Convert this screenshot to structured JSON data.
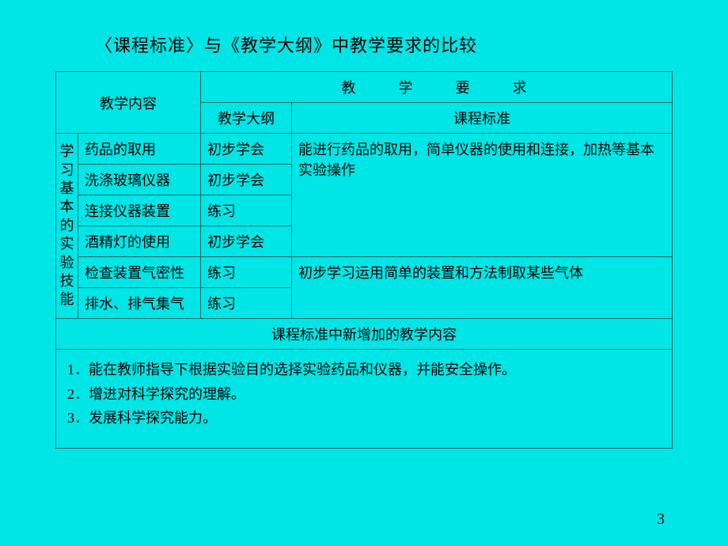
{
  "title": "〈课程标准〉与《教学大纲》中教学要求的比较",
  "table": {
    "header_content": "教学内容",
    "header_requirement": "教　学　要　求",
    "sub_syllabus": "教学大纲",
    "sub_standard": "课程标准",
    "vertical_label": "学习基本的实验技能",
    "rows": [
      {
        "content": "药品的取用",
        "syllabus": "初步学会"
      },
      {
        "content": "洗涤玻璃仪器",
        "syllabus": "初步学会"
      },
      {
        "content": "连接仪器装置",
        "syllabus": "练习"
      },
      {
        "content": "酒精灯的使用",
        "syllabus": "初步学会"
      },
      {
        "content": "检查装置气密性",
        "syllabus": "练习"
      },
      {
        "content": "排水、排气集气",
        "syllabus": "练习"
      }
    ],
    "standard_group1": "能进行药品的取用，简单仪器的使用和连接，加热等基本实验操作",
    "standard_group2": "初步学习运用简单的装置和方法制取某些气体",
    "new_content_header": "课程标准中新增加的教学内容",
    "notes": [
      "1．能在教师指导下根据实验目的选择实验药品和仪器，并能安全操作。",
      "2．增进对科学探究的理解。",
      "3．发展科学探究能力。"
    ]
  },
  "page_number": "3",
  "colors": {
    "background": "#00e5e5",
    "border": "#006666",
    "text": "#000000"
  }
}
